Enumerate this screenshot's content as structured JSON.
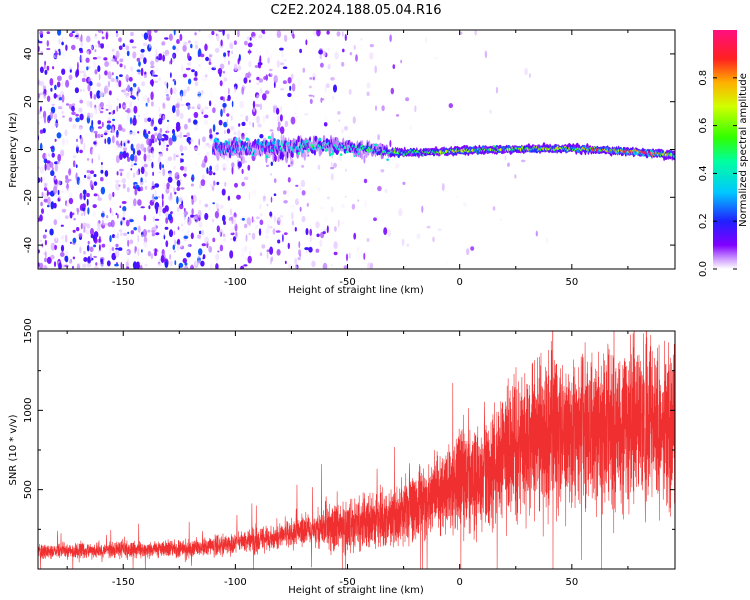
{
  "title": "C2E2.2024.188.05.04.R16",
  "chart_data": [
    {
      "type": "heatmap",
      "xlabel": "Height of straight line (km)",
      "ylabel": "Frequency (Hz)",
      "xlim": [
        -188,
        96
      ],
      "ylim": [
        -50,
        50
      ],
      "xticks": [
        -150,
        -100,
        -50,
        0,
        50
      ],
      "yticks": [
        -40,
        -20,
        0,
        20,
        40
      ],
      "colorbar": {
        "label": "Normalized spectral amplitude",
        "range": [
          0.0,
          1.0
        ],
        "ticks": [
          "0.0",
          "0.2",
          "0.4",
          "0.6",
          "0.8"
        ],
        "tick_values": [
          0.0,
          0.2,
          0.4,
          0.6,
          0.8
        ],
        "colormap": "gist_rainbow_r"
      },
      "ridge": {
        "points": [
          {
            "x": -100,
            "f": 0.5,
            "width": 5,
            "amp": 0.3
          },
          {
            "x": -80,
            "f": 1.0,
            "width": 5,
            "amp": 0.35
          },
          {
            "x": -60,
            "f": 1.5,
            "width": 4,
            "amp": 0.4
          },
          {
            "x": -40,
            "f": 0.0,
            "width": 3.5,
            "amp": 0.42
          },
          {
            "x": -25,
            "f": -1.5,
            "width": 3,
            "amp": 0.45
          },
          {
            "x": -10,
            "f": -1.0,
            "width": 3,
            "amp": 0.48
          },
          {
            "x": 0,
            "f": -0.5,
            "width": 3,
            "amp": 0.52
          },
          {
            "x": 20,
            "f": 0.0,
            "width": 3,
            "amp": 0.5
          },
          {
            "x": 50,
            "f": 0.5,
            "width": 3,
            "amp": 0.55
          },
          {
            "x": 85,
            "f": -1.5,
            "width": 3,
            "amp": 0.8
          },
          {
            "x": 96,
            "f": -2.5,
            "width": 4,
            "amp": 0.4
          }
        ]
      },
      "noise": {
        "points": [
          {
            "x": -188,
            "density": 0.8
          },
          {
            "x": -120,
            "density": 0.8
          },
          {
            "x": -90,
            "density": 0.45
          },
          {
            "x": -60,
            "density": 0.25
          },
          {
            "x": -35,
            "density": 0.1
          },
          {
            "x": -20,
            "density": 0.03
          },
          {
            "x": 96,
            "density": 0.0
          }
        ]
      }
    },
    {
      "type": "line",
      "xlabel": "Height of straight line (km)",
      "ylabel": "SNR (10 * v/v)",
      "xlim": [
        -188,
        96
      ],
      "ylim": [
        0,
        1500
      ],
      "xticks": [
        -150,
        -100,
        -50,
        0,
        50
      ],
      "yticks": [
        500,
        1000,
        1500
      ],
      "color": "#f03030",
      "trend": [
        {
          "x": -188,
          "y": 110
        },
        {
          "x": -150,
          "y": 120
        },
        {
          "x": -120,
          "y": 130
        },
        {
          "x": -100,
          "y": 160
        },
        {
          "x": -75,
          "y": 220
        },
        {
          "x": -55,
          "y": 270
        },
        {
          "x": -30,
          "y": 330
        },
        {
          "x": -15,
          "y": 420
        },
        {
          "x": 0,
          "y": 550
        },
        {
          "x": 10,
          "y": 600
        },
        {
          "x": 25,
          "y": 760
        },
        {
          "x": 40,
          "y": 840
        },
        {
          "x": 60,
          "y": 860
        },
        {
          "x": 80,
          "y": 900
        },
        {
          "x": 96,
          "y": 920
        }
      ]
    }
  ]
}
